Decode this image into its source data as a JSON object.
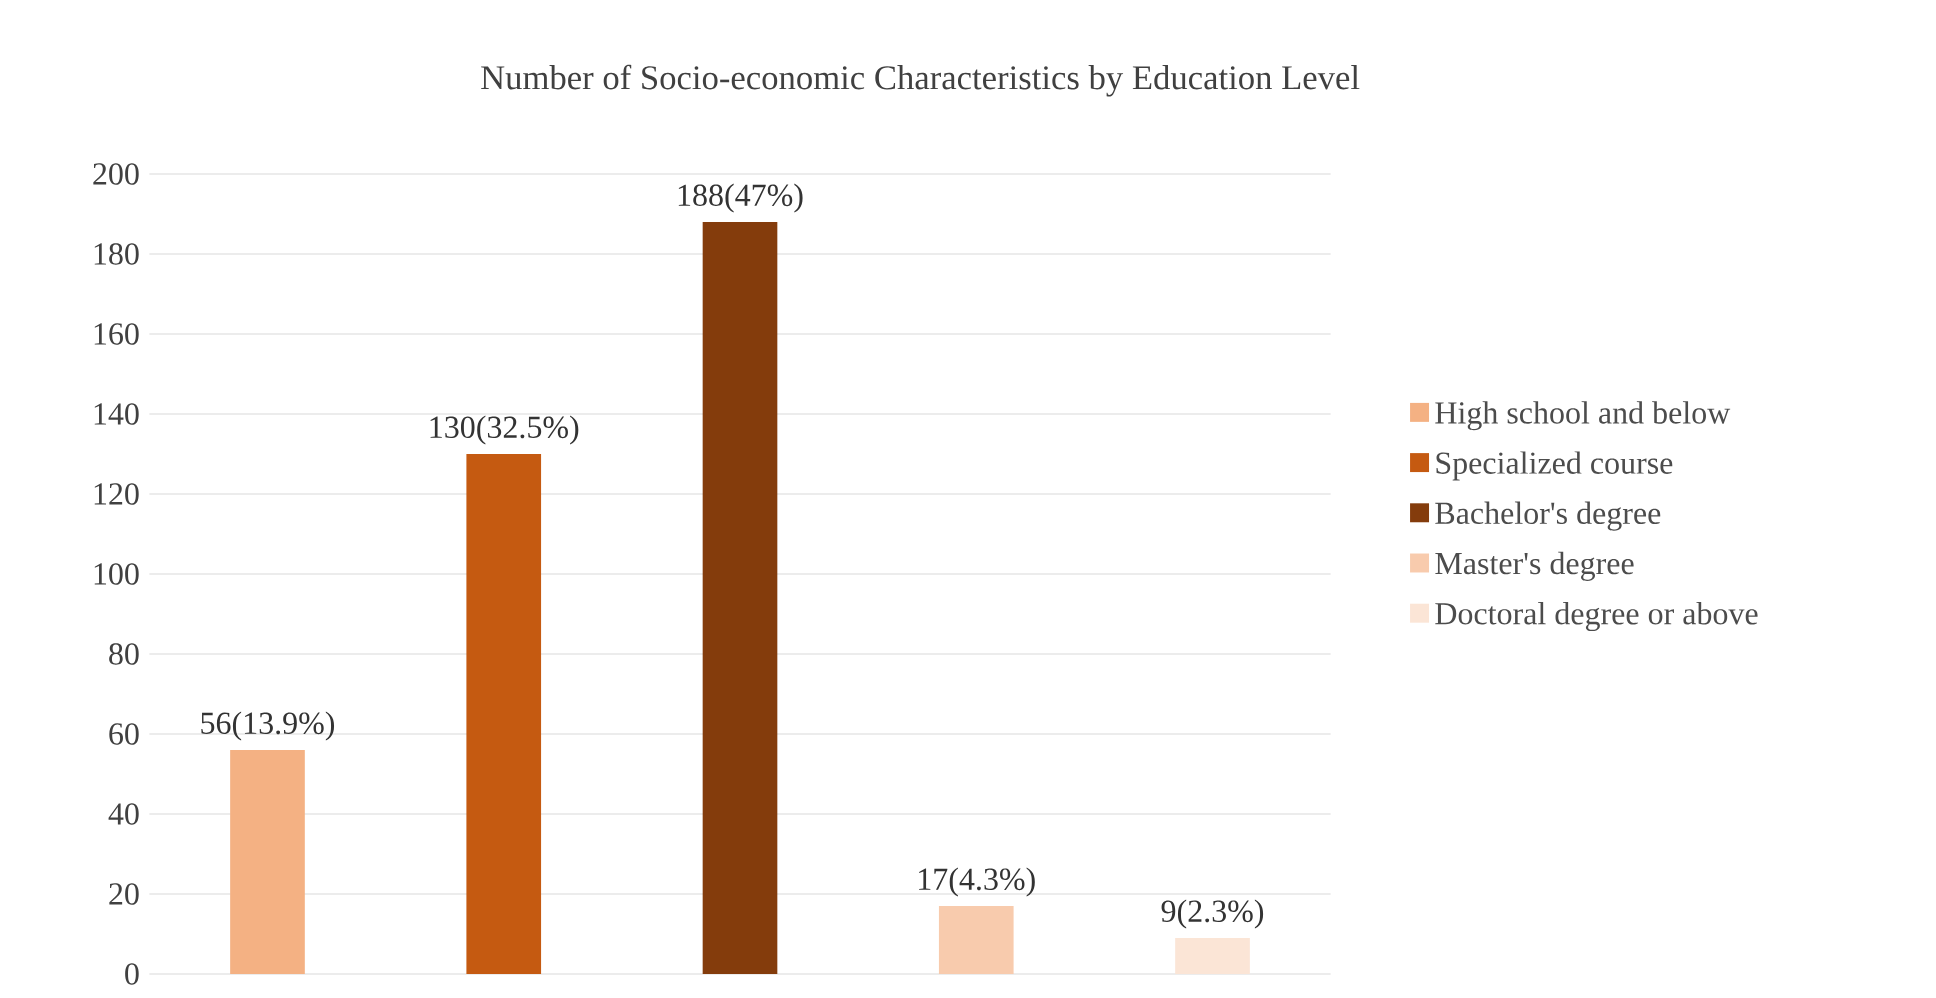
{
  "chart_data": {
    "type": "bar",
    "title": "Number of Socio-economic Characteristics by Education Level",
    "categories": [
      null,
      null,
      null,
      null,
      null
    ],
    "series": [
      {
        "name": "High school and below",
        "color": "#f4b183",
        "values": [
          56,
          null,
          null,
          null,
          null
        ],
        "value_labels": [
          "56(13.9%)",
          null,
          null,
          null,
          null
        ]
      },
      {
        "name": "Specialized course",
        "color": "#c55a11",
        "values": [
          null,
          130,
          null,
          null,
          null
        ],
        "value_labels": [
          null,
          "130(32.5%)",
          null,
          null,
          null
        ]
      },
      {
        "name": "Bachelor's degree",
        "color": "#843c0c",
        "values": [
          null,
          null,
          188,
          null,
          null
        ],
        "value_labels": [
          null,
          null,
          "188(47%)",
          null,
          null
        ]
      },
      {
        "name": "Master's degree",
        "color": "#f8cbad",
        "values": [
          null,
          null,
          null,
          17,
          null
        ],
        "value_labels": [
          null,
          null,
          null,
          "17(4.3%)",
          null
        ]
      },
      {
        "name": "Doctoral degree or above",
        "color": "#fbe5d6",
        "values": [
          null,
          null,
          null,
          null,
          9
        ],
        "value_labels": [
          null,
          null,
          null,
          null,
          "9(2.3%)"
        ]
      }
    ],
    "ylim": [
      0,
      200
    ],
    "yticks": [
      0,
      20,
      40,
      60,
      80,
      100,
      120,
      140,
      160,
      180,
      200
    ],
    "grid": "y",
    "legend": "right"
  }
}
